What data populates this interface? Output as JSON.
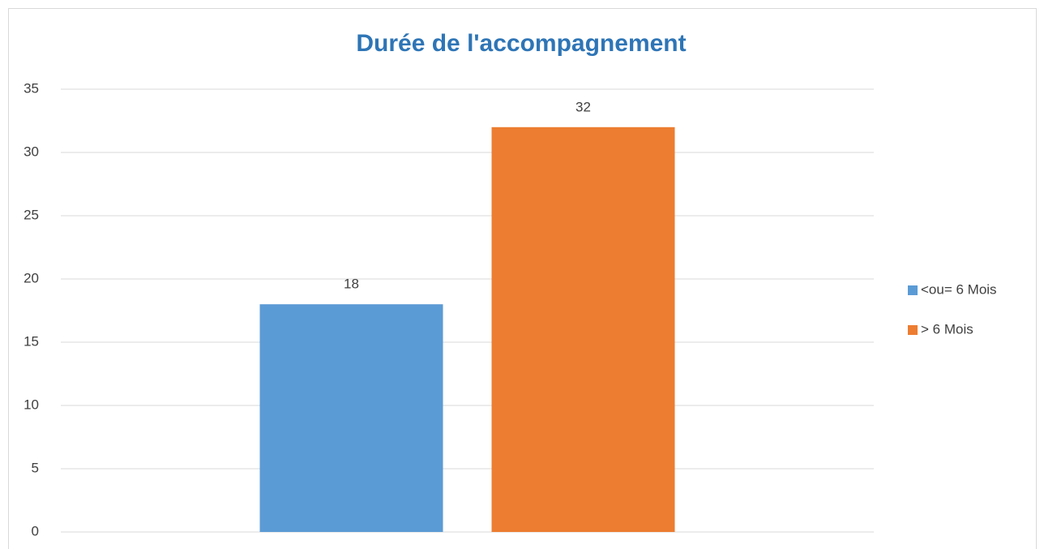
{
  "chart_data": {
    "type": "bar",
    "title": "Durée de l'accompagnement",
    "categories": [
      null
    ],
    "series": [
      {
        "name": "<ou= 6 Mois",
        "color": "#5b9bd5",
        "values": [
          18
        ]
      },
      {
        "name": "> 6 Mois",
        "color": "#ed7d31",
        "values": [
          32
        ]
      }
    ],
    "ylim": [
      0,
      35
    ],
    "yticks": [
      0,
      5,
      10,
      15,
      20,
      25,
      30,
      35
    ],
    "grid": true,
    "legend": "right"
  }
}
